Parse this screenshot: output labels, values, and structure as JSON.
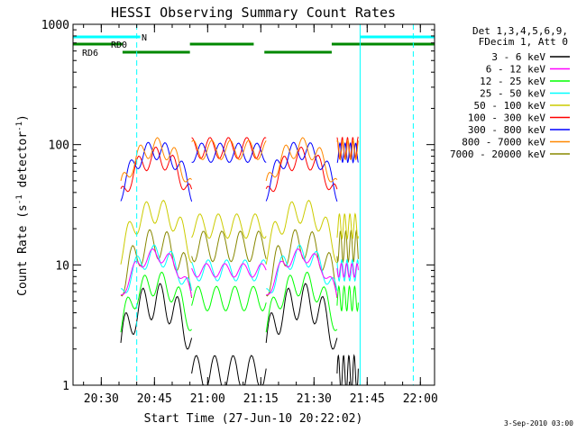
{
  "chart_data": {
    "type": "line",
    "title": "HESSI Observing Summary Count Rates",
    "xlabel": "Start Time (27-Jun-10 20:22:02)",
    "ylabel": "Count Rate (s⁻¹ detector⁻¹)",
    "ylabel_main": "Count Rate (s",
    "ylabel_sup1": "-1",
    "ylabel_mid": " detector",
    "ylabel_sup2": "-1",
    "ylabel_end": ")",
    "y_scale": "log",
    "ylim": [
      1,
      1000
    ],
    "y_ticks": [
      {
        "value": 1,
        "label": "1"
      },
      {
        "value": 10,
        "label": "10"
      },
      {
        "value": 100,
        "label": "100"
      },
      {
        "value": 1000,
        "label": "1000"
      }
    ],
    "xlim": [
      "20:22:02",
      "22:04:00"
    ],
    "x_ticks": [
      "20:30",
      "20:45",
      "21:00",
      "21:15",
      "21:30",
      "21:45",
      "22:00"
    ],
    "legend_placement": "right",
    "legend_header": [
      "Det 1,3,4,5,6,9,",
      "FDecim 1, Att 0"
    ],
    "series": [
      {
        "name": "3 - 6 keV",
        "color": "#000000"
      },
      {
        "name": "6 - 12 keV",
        "color": "#ff00ff"
      },
      {
        "name": "12 - 25 keV",
        "color": "#00ff00"
      },
      {
        "name": "25 - 50 keV",
        "color": "#00ffff"
      },
      {
        "name": "50 - 100 keV",
        "color": "#cccc00"
      },
      {
        "name": "100 - 300 keV",
        "color": "#ff0000"
      },
      {
        "name": "300 - 800 keV",
        "color": "#0000ff"
      },
      {
        "name": "800 - 7000 keV",
        "color": "#ff8800"
      },
      {
        "name": "7000 - 20000 keV",
        "color": "#888800"
      }
    ],
    "flags": [
      {
        "label": "N",
        "color": "#00ffff",
        "segments": [
          [
            "20:22",
            "20:41"
          ],
          [
            "21:43",
            "22:04"
          ]
        ]
      },
      {
        "label": "RD0",
        "color": "#008800",
        "segments": [
          [
            "20:22",
            "20:36"
          ],
          [
            "20:55",
            "21:13"
          ],
          [
            "21:35",
            "22:04"
          ]
        ]
      },
      {
        "label": "RD6",
        "color": "#008800",
        "segments": [
          [
            "20:36",
            "20:55"
          ],
          [
            "21:16",
            "21:35"
          ]
        ]
      }
    ],
    "vlines": [
      {
        "time": "20:40",
        "style": "dashed",
        "color": "#00ffff"
      },
      {
        "time": "21:43",
        "style": "solid",
        "color": "#00ffff"
      },
      {
        "time": "21:58",
        "style": "dashed",
        "color": "#00ffff"
      }
    ],
    "footer_date": "3-Sep-2010 03:00"
  }
}
